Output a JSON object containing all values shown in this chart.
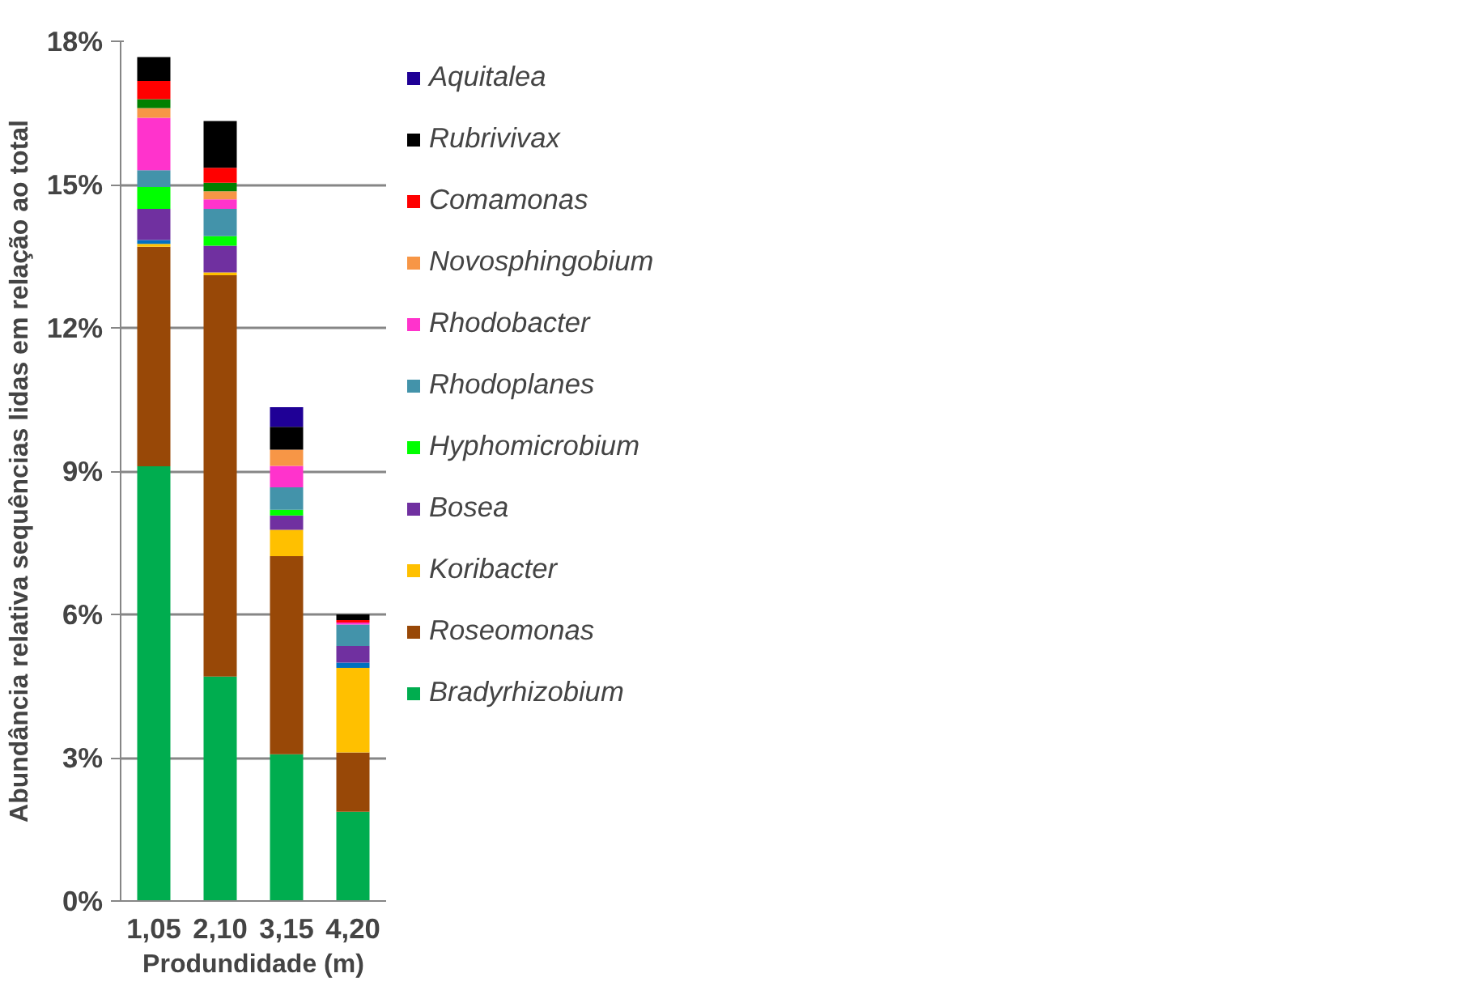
{
  "chart_data": {
    "type": "bar",
    "stacked": true,
    "xlabel": "Produndidade (m)",
    "ylabel": "Abundância relativa sequências lidas em relação ao total",
    "categories": [
      "1,05",
      "2,10",
      "3,15",
      "4,20"
    ],
    "series": [
      {
        "name": "Bradyrhizobium",
        "color": "#00ad4f",
        "values": [
          9.1,
          4.7,
          3.07,
          1.87
        ]
      },
      {
        "name": "Roseomonas",
        "color": "#984807",
        "values": [
          4.6,
          8.4,
          4.15,
          1.24
        ]
      },
      {
        "name": "Koribacter",
        "color": "#ffc000",
        "values": [
          0.06,
          0.06,
          0.55,
          1.77
        ]
      },
      {
        "color": "#0070c0",
        "values": [
          0.08,
          null,
          null,
          0.11
        ]
      },
      {
        "name": "Bosea",
        "color": "#7030a0",
        "values": [
          0.65,
          0.56,
          0.3,
          0.35
        ]
      },
      {
        "name": "Hyphomicrobium",
        "color": "#00ff00",
        "values": [
          0.46,
          0.2,
          0.12,
          null
        ]
      },
      {
        "name": "Rhodoplanes",
        "color": "#4393aa",
        "values": [
          0.35,
          0.57,
          0.47,
          0.45
        ]
      },
      {
        "name": "Rhodobacter",
        "color": "#ff33cc",
        "values": [
          1.1,
          0.2,
          0.45,
          0.04
        ]
      },
      {
        "name": "Novosphingobium",
        "color": "#f79646",
        "values": [
          0.2,
          0.17,
          0.34,
          null
        ]
      },
      {
        "color": "#008000",
        "values": [
          0.19,
          0.18,
          null,
          null
        ]
      },
      {
        "name": "Comamonas",
        "color": "#ff0000",
        "values": [
          0.38,
          0.31,
          null,
          0.05
        ]
      },
      {
        "name": "Rubrivivax",
        "color": "#000000",
        "values": [
          0.5,
          0.98,
          0.48,
          0.12
        ]
      },
      {
        "name": "Aquitalea",
        "color": "#1f0096",
        "values": [
          null,
          null,
          0.41,
          null
        ]
      }
    ],
    "ylim": [
      0,
      18
    ],
    "yticks": [
      {
        "value": 0,
        "label": "0%"
      },
      {
        "value": 3,
        "label": "3%"
      },
      {
        "value": 6,
        "label": "6%"
      },
      {
        "value": 9,
        "label": "9%"
      },
      {
        "value": 12,
        "label": "12%"
      },
      {
        "value": 15,
        "label": "15%"
      },
      {
        "value": 18,
        "label": "18%"
      }
    ],
    "grid": "y",
    "legend": "right"
  }
}
